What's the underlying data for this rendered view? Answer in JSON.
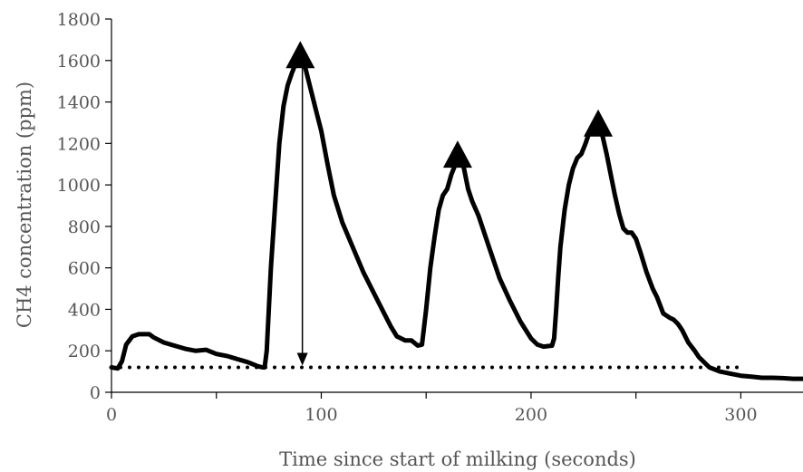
{
  "chart_data": {
    "type": "line",
    "xlabel": "Time since start of milking (seconds)",
    "ylabel": "CH4 concentration (ppm)",
    "xlim": [
      0,
      340
    ],
    "ylim": [
      0,
      1800
    ],
    "x_ticks": [
      0,
      100,
      200,
      300
    ],
    "x_tick_labels": [
      "0",
      "100",
      "200",
      "300"
    ],
    "y_ticks": [
      0,
      200,
      400,
      600,
      800,
      1000,
      1200,
      1400,
      1600,
      1800
    ],
    "y_tick_labels": [
      "0",
      "200",
      "400",
      "600",
      "800",
      "1000",
      "1200",
      "1400",
      "1600",
      "1800"
    ],
    "grid": false,
    "legend": "none",
    "series": [
      {
        "x": [
          0,
          3,
          5,
          7,
          10,
          13,
          15,
          18,
          20,
          25,
          30,
          35,
          40,
          45,
          50,
          55,
          60,
          65,
          70,
          72,
          73,
          74,
          75,
          76,
          78,
          80,
          82,
          84,
          86,
          88,
          90,
          92,
          94,
          96,
          98,
          100,
          103,
          106,
          110,
          115,
          120,
          125,
          130,
          133,
          136,
          140,
          143,
          146,
          148,
          150,
          152,
          154,
          156,
          158,
          160,
          162,
          164,
          166,
          168,
          170,
          172,
          175,
          180,
          185,
          190,
          195,
          200,
          203,
          206,
          210,
          211,
          212,
          213,
          214,
          216,
          218,
          220,
          222,
          224,
          226,
          228,
          230,
          232,
          234,
          236,
          238,
          240,
          242,
          244,
          246,
          248,
          250,
          252,
          255,
          258,
          260,
          263,
          266,
          268,
          270,
          272,
          275,
          278,
          280,
          283,
          285,
          290,
          295,
          300,
          305,
          310,
          315,
          320,
          325,
          330,
          335,
          340
        ],
        "y": [
          120,
          115,
          150,
          230,
          270,
          280,
          280,
          280,
          265,
          240,
          225,
          210,
          200,
          205,
          185,
          175,
          160,
          145,
          125,
          120,
          120,
          200,
          400,
          600,
          900,
          1200,
          1380,
          1480,
          1540,
          1590,
          1620,
          1580,
          1500,
          1420,
          1340,
          1260,
          1100,
          950,
          820,
          700,
          580,
          480,
          380,
          320,
          270,
          250,
          250,
          225,
          230,
          400,
          600,
          750,
          880,
          950,
          980,
          1050,
          1100,
          1140,
          1080,
          980,
          920,
          850,
          700,
          550,
          440,
          340,
          260,
          230,
          220,
          225,
          260,
          400,
          560,
          700,
          880,
          1000,
          1080,
          1130,
          1150,
          1200,
          1260,
          1290,
          1280,
          1240,
          1150,
          1050,
          950,
          860,
          790,
          770,
          770,
          740,
          680,
          580,
          500,
          460,
          380,
          360,
          350,
          330,
          300,
          240,
          200,
          170,
          140,
          120,
          100,
          90,
          80,
          75,
          70,
          70,
          68,
          65,
          65,
          65,
          65
        ]
      }
    ],
    "baseline": {
      "value": 120,
      "x_range": [
        0,
        300
      ],
      "style": "dotted"
    },
    "annotations": [
      {
        "type": "triangle",
        "x": 90,
        "y": 1620
      },
      {
        "type": "triangle",
        "x": 165,
        "y": 1140
      },
      {
        "type": "triangle",
        "x": 232,
        "y": 1290
      },
      {
        "type": "arrow",
        "x": 91,
        "from_y": 1620,
        "to_y": 120
      }
    ],
    "colors": {
      "line": "#000000",
      "axis": "#000000",
      "text": "#555555"
    }
  }
}
